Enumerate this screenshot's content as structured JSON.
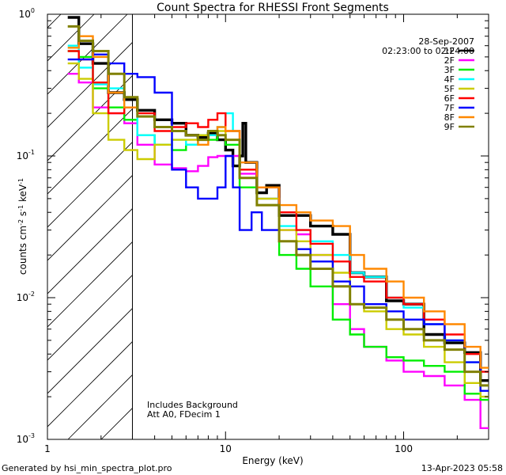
{
  "chart_data": {
    "type": "line",
    "step": true,
    "title": "Count Spectra for RHESSI Front Segments",
    "xlabel": "Energy (keV)",
    "ylabel": "counts cm-2 s-1 keV-1",
    "xscale": "log",
    "yscale": "log",
    "xlim": [
      1,
      300
    ],
    "ylim": [
      0.001,
      1.0
    ],
    "x_ticks": [
      {
        "v": 1,
        "label": "1"
      },
      {
        "v": 10,
        "label": "10"
      },
      {
        "v": 100,
        "label": "100"
      }
    ],
    "y_ticks": [
      {
        "v": 1,
        "label": "10",
        "sup": "0"
      },
      {
        "v": 0.1,
        "label": "10",
        "sup": "-1"
      },
      {
        "v": 0.01,
        "label": "10",
        "sup": "-2"
      },
      {
        "v": 0.001,
        "label": "10",
        "sup": "-3"
      }
    ],
    "attenuator_boundary_keV": 3,
    "date": "28-Sep-2007",
    "time_range": "02:23:00 to 02:24:00",
    "annotations": [
      "Includes Background",
      "Att A0, FDecim 1"
    ],
    "series": [
      {
        "name": "1F",
        "color": "#000000",
        "lw": 3.4,
        "points": [
          [
            1.3,
            0.95
          ],
          [
            1.5,
            0.62
          ],
          [
            1.8,
            0.45
          ],
          [
            2.2,
            0.28
          ],
          [
            2.7,
            0.25
          ],
          [
            3.2,
            0.21
          ],
          [
            4,
            0.18
          ],
          [
            5,
            0.17
          ],
          [
            6,
            0.14
          ],
          [
            7,
            0.135
          ],
          [
            8,
            0.145
          ],
          [
            9,
            0.13
          ],
          [
            10,
            0.11
          ],
          [
            11,
            0.085
          ],
          [
            12,
            0.1
          ],
          [
            12.5,
            0.17
          ],
          [
            13,
            0.09
          ],
          [
            15,
            0.055
          ],
          [
            17,
            0.062
          ],
          [
            20,
            0.038
          ],
          [
            25,
            0.038
          ],
          [
            30,
            0.032
          ],
          [
            40,
            0.028
          ],
          [
            50,
            0.015
          ],
          [
            60,
            0.014
          ],
          [
            80,
            0.0095
          ],
          [
            100,
            0.009
          ],
          [
            130,
            0.0055
          ],
          [
            170,
            0.0048
          ],
          [
            220,
            0.0041
          ],
          [
            270,
            0.0026
          ]
        ]
      },
      {
        "name": "2F",
        "color": "#ff00ff",
        "lw": 2.4,
        "points": [
          [
            1.3,
            0.38
          ],
          [
            1.5,
            0.33
          ],
          [
            1.8,
            0.22
          ],
          [
            2.2,
            0.2
          ],
          [
            2.7,
            0.17
          ],
          [
            3.2,
            0.12
          ],
          [
            4,
            0.087
          ],
          [
            5,
            0.082
          ],
          [
            6,
            0.078
          ],
          [
            7,
            0.085
          ],
          [
            8,
            0.098
          ],
          [
            9,
            0.1
          ],
          [
            10,
            0.1
          ],
          [
            12,
            0.075
          ],
          [
            15,
            0.05
          ],
          [
            20,
            0.03
          ],
          [
            25,
            0.028
          ],
          [
            30,
            0.02
          ],
          [
            40,
            0.009
          ],
          [
            50,
            0.006
          ],
          [
            60,
            0.0045
          ],
          [
            80,
            0.0036
          ],
          [
            100,
            0.003
          ],
          [
            130,
            0.0028
          ],
          [
            170,
            0.0024
          ],
          [
            220,
            0.0019
          ],
          [
            270,
            0.0012
          ]
        ]
      },
      {
        "name": "3F",
        "color": "#00ee00",
        "lw": 2.4,
        "points": [
          [
            1.3,
            0.55
          ],
          [
            1.5,
            0.5
          ],
          [
            1.8,
            0.3
          ],
          [
            2.2,
            0.22
          ],
          [
            2.7,
            0.18
          ],
          [
            3.2,
            0.14
          ],
          [
            4,
            0.12
          ],
          [
            5,
            0.11
          ],
          [
            6,
            0.12
          ],
          [
            7,
            0.14
          ],
          [
            8,
            0.13
          ],
          [
            9,
            0.14
          ],
          [
            10,
            0.12
          ],
          [
            12,
            0.06
          ],
          [
            15,
            0.045
          ],
          [
            20,
            0.02
          ],
          [
            25,
            0.016
          ],
          [
            30,
            0.012
          ],
          [
            40,
            0.007
          ],
          [
            50,
            0.0055
          ],
          [
            60,
            0.0045
          ],
          [
            80,
            0.0038
          ],
          [
            100,
            0.0036
          ],
          [
            130,
            0.0033
          ],
          [
            170,
            0.003
          ],
          [
            220,
            0.0021
          ],
          [
            270,
            0.0019
          ]
        ]
      },
      {
        "name": "4F",
        "color": "#00ffff",
        "lw": 2.4,
        "points": [
          [
            1.3,
            0.6
          ],
          [
            1.5,
            0.42
          ],
          [
            1.8,
            0.32
          ],
          [
            2.2,
            0.3
          ],
          [
            2.7,
            0.22
          ],
          [
            3.2,
            0.14
          ],
          [
            4,
            0.12
          ],
          [
            5,
            0.13
          ],
          [
            6,
            0.12
          ],
          [
            7,
            0.13
          ],
          [
            8,
            0.14
          ],
          [
            9,
            0.16
          ],
          [
            10,
            0.2
          ],
          [
            11,
            0.15
          ],
          [
            12,
            0.07
          ],
          [
            15,
            0.05
          ],
          [
            20,
            0.032
          ],
          [
            25,
            0.03
          ],
          [
            30,
            0.025
          ],
          [
            40,
            0.02
          ],
          [
            50,
            0.015
          ],
          [
            60,
            0.014
          ],
          [
            80,
            0.01
          ],
          [
            100,
            0.0085
          ],
          [
            130,
            0.0065
          ],
          [
            170,
            0.005
          ],
          [
            220,
            0.0035
          ],
          [
            270,
            0.0024
          ]
        ]
      },
      {
        "name": "5F",
        "color": "#cccc00",
        "lw": 2.4,
        "points": [
          [
            1.3,
            0.45
          ],
          [
            1.5,
            0.35
          ],
          [
            1.8,
            0.2
          ],
          [
            2.2,
            0.13
          ],
          [
            2.7,
            0.11
          ],
          [
            3.2,
            0.095
          ],
          [
            4,
            0.12
          ],
          [
            5,
            0.13
          ],
          [
            6,
            0.13
          ],
          [
            7,
            0.14
          ],
          [
            8,
            0.15
          ],
          [
            9,
            0.15
          ],
          [
            10,
            0.13
          ],
          [
            12,
            0.08
          ],
          [
            15,
            0.05
          ],
          [
            20,
            0.03
          ],
          [
            25,
            0.025
          ],
          [
            30,
            0.02
          ],
          [
            40,
            0.015
          ],
          [
            50,
            0.009
          ],
          [
            60,
            0.008
          ],
          [
            80,
            0.006
          ],
          [
            100,
            0.0055
          ],
          [
            130,
            0.0045
          ],
          [
            170,
            0.0035
          ],
          [
            220,
            0.0025
          ],
          [
            270,
            0.002
          ]
        ]
      },
      {
        "name": "6F",
        "color": "#ff0000",
        "lw": 2.4,
        "points": [
          [
            1.3,
            0.55
          ],
          [
            1.5,
            0.48
          ],
          [
            1.8,
            0.33
          ],
          [
            2.2,
            0.2
          ],
          [
            2.7,
            0.22
          ],
          [
            3.2,
            0.2
          ],
          [
            4,
            0.15
          ],
          [
            5,
            0.16
          ],
          [
            6,
            0.17
          ],
          [
            7,
            0.16
          ],
          [
            8,
            0.18
          ],
          [
            9,
            0.2
          ],
          [
            10,
            0.15
          ],
          [
            12,
            0.08
          ],
          [
            15,
            0.06
          ],
          [
            20,
            0.04
          ],
          [
            25,
            0.03
          ],
          [
            30,
            0.024
          ],
          [
            40,
            0.018
          ],
          [
            50,
            0.014
          ],
          [
            60,
            0.013
          ],
          [
            80,
            0.01
          ],
          [
            100,
            0.009
          ],
          [
            130,
            0.007
          ],
          [
            170,
            0.0055
          ],
          [
            220,
            0.004
          ],
          [
            270,
            0.003
          ]
        ]
      },
      {
        "name": "7F",
        "color": "#0000ff",
        "lw": 2.4,
        "points": [
          [
            1.3,
            0.48
          ],
          [
            1.5,
            0.48
          ],
          [
            1.8,
            0.52
          ],
          [
            2.2,
            0.45
          ],
          [
            2.7,
            0.38
          ],
          [
            3.2,
            0.36
          ],
          [
            4,
            0.28
          ],
          [
            5,
            0.08
          ],
          [
            6,
            0.06
          ],
          [
            7,
            0.05
          ],
          [
            8,
            0.05
          ],
          [
            9,
            0.06
          ],
          [
            10,
            0.1
          ],
          [
            11,
            0.06
          ],
          [
            12,
            0.03
          ],
          [
            14,
            0.04
          ],
          [
            16,
            0.03
          ],
          [
            20,
            0.025
          ],
          [
            25,
            0.022
          ],
          [
            30,
            0.018
          ],
          [
            40,
            0.013
          ],
          [
            50,
            0.012
          ],
          [
            60,
            0.009
          ],
          [
            80,
            0.008
          ],
          [
            100,
            0.007
          ],
          [
            130,
            0.0065
          ],
          [
            170,
            0.005
          ],
          [
            220,
            0.0035
          ],
          [
            270,
            0.0022
          ]
        ]
      },
      {
        "name": "8F",
        "color": "#ff8800",
        "lw": 2.4,
        "points": [
          [
            1.3,
            0.58
          ],
          [
            1.5,
            0.7
          ],
          [
            1.8,
            0.5
          ],
          [
            2.2,
            0.28
          ],
          [
            2.7,
            0.22
          ],
          [
            3.2,
            0.19
          ],
          [
            4,
            0.16
          ],
          [
            5,
            0.15
          ],
          [
            6,
            0.14
          ],
          [
            7,
            0.12
          ],
          [
            8,
            0.15
          ],
          [
            9,
            0.16
          ],
          [
            10,
            0.15
          ],
          [
            12,
            0.09
          ],
          [
            15,
            0.06
          ],
          [
            20,
            0.045
          ],
          [
            25,
            0.04
          ],
          [
            30,
            0.035
          ],
          [
            40,
            0.032
          ],
          [
            50,
            0.02
          ],
          [
            60,
            0.016
          ],
          [
            80,
            0.013
          ],
          [
            100,
            0.01
          ],
          [
            130,
            0.008
          ],
          [
            170,
            0.0065
          ],
          [
            220,
            0.0045
          ],
          [
            270,
            0.0032
          ]
        ]
      },
      {
        "name": "9F",
        "color": "#808000",
        "lw": 3.0,
        "points": [
          [
            1.3,
            0.82
          ],
          [
            1.5,
            0.65
          ],
          [
            1.8,
            0.55
          ],
          [
            2.2,
            0.38
          ],
          [
            2.7,
            0.26
          ],
          [
            3.2,
            0.19
          ],
          [
            4,
            0.16
          ],
          [
            5,
            0.15
          ],
          [
            6,
            0.14
          ],
          [
            7,
            0.13
          ],
          [
            8,
            0.15
          ],
          [
            9,
            0.14
          ],
          [
            10,
            0.13
          ],
          [
            12,
            0.07
          ],
          [
            15,
            0.045
          ],
          [
            20,
            0.025
          ],
          [
            25,
            0.02
          ],
          [
            30,
            0.016
          ],
          [
            40,
            0.012
          ],
          [
            50,
            0.009
          ],
          [
            60,
            0.0085
          ],
          [
            80,
            0.007
          ],
          [
            100,
            0.006
          ],
          [
            130,
            0.005
          ],
          [
            170,
            0.0043
          ],
          [
            220,
            0.003
          ],
          [
            270,
            0.0024
          ]
        ]
      }
    ]
  },
  "footer": {
    "generated_by": "Generated by hsi_min_spectra_plot.pro",
    "timestamp": "13-Apr-2023 05:58"
  }
}
